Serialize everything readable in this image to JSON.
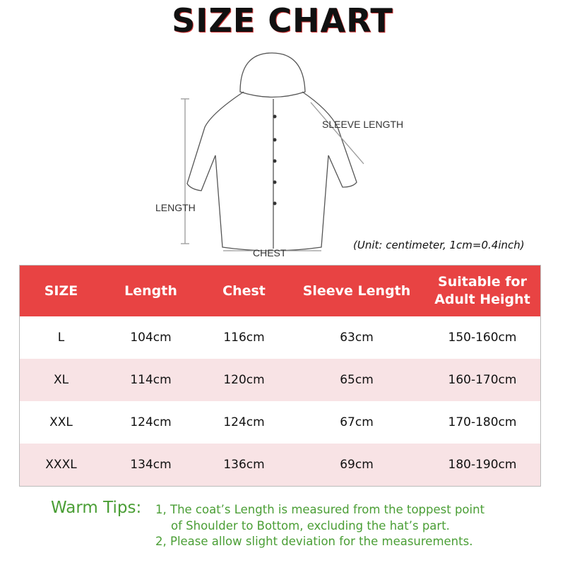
{
  "title": "SIZE CHART",
  "diagram": {
    "sleeve": "SLEEVE LENGTH",
    "length": "LENGTH",
    "chest": "CHEST"
  },
  "unit_note": "(Unit: centimeter, 1cm=0.4inch)",
  "table": {
    "headers": [
      "SIZE",
      "Length",
      "Chest",
      "Sleeve Length",
      "Suitable for Adult Height"
    ],
    "rows": [
      [
        "L",
        "104cm",
        "116cm",
        "63cm",
        "150-160cm"
      ],
      [
        "XL",
        "114cm",
        "120cm",
        "65cm",
        "160-170cm"
      ],
      [
        "XXL",
        "124cm",
        "124cm",
        "67cm",
        "170-180cm"
      ],
      [
        "XXXL",
        "134cm",
        "136cm",
        "69cm",
        "180-190cm"
      ]
    ],
    "header_color": "#e84343",
    "stripe_color": "#f8e3e5"
  },
  "tips": {
    "heading": "Warm Tips:",
    "line1": "1, The coat’s Length is measured from the toppest point",
    "line1b": "of Shoulder to Bottom, excluding the hat’s part.",
    "line2": "2, Please allow slight deviation for the measurements."
  }
}
